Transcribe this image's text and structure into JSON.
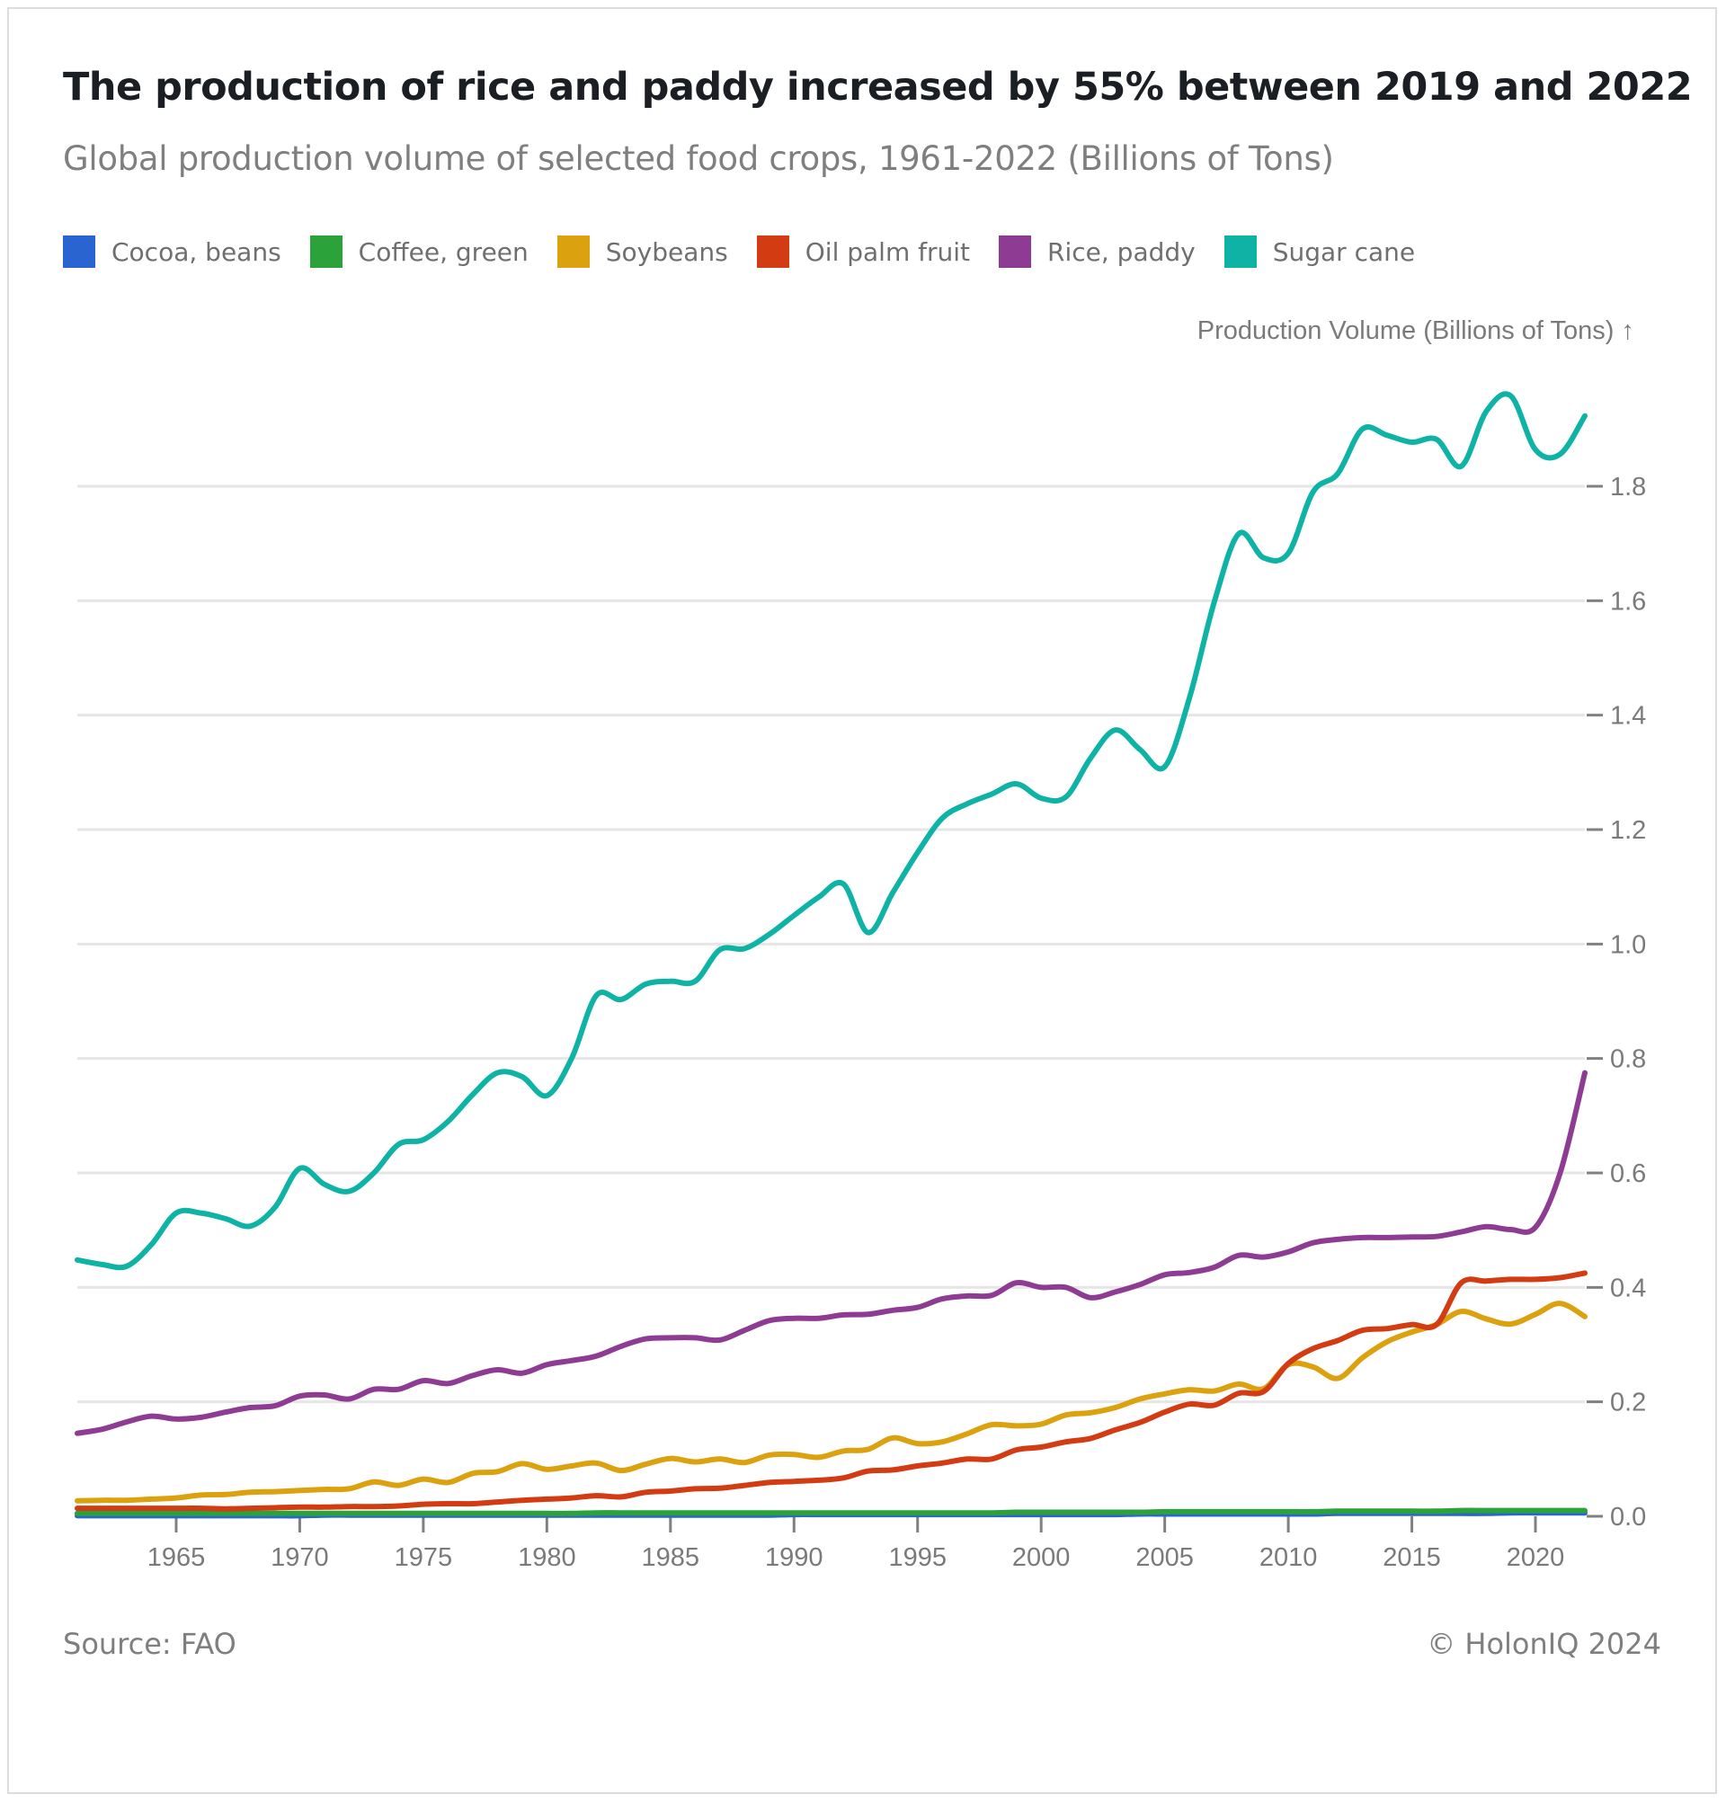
{
  "header": {
    "title": "The production of rice and paddy increased by 55% between 2019 and 2022",
    "subtitle": "Global production volume of selected food crops, 1961-2022 (Billions of Tons)"
  },
  "footer": {
    "source": "Source: FAO",
    "copyright": "© HolonIQ 2024"
  },
  "chart_data": {
    "type": "line",
    "title": "The production of rice and paddy increased by 55% between 2019 and 2022",
    "subtitle": "Global production volume of selected food crops, 1961-2022 (Billions of Tons)",
    "xlabel": "",
    "ylabel": "Production Volume (Billions of Tons) ↑",
    "xlim": [
      1961,
      2022
    ],
    "ylim": [
      0,
      1.96
    ],
    "x_ticks": [
      1965,
      1970,
      1975,
      1980,
      1985,
      1990,
      1995,
      2000,
      2005,
      2010,
      2015,
      2020
    ],
    "y_ticks": [
      0.0,
      0.2,
      0.4,
      0.6,
      0.8,
      1.0,
      1.2,
      1.4,
      1.6,
      1.8
    ],
    "y_tick_labels": [
      "0.0",
      "0.2",
      "0.4",
      "0.6",
      "0.8",
      "1.0",
      "1.2",
      "1.4",
      "1.6",
      "1.8"
    ],
    "grid": "horizontal",
    "legend_position": "top-left",
    "x_start": 1961,
    "series": [
      {
        "name": "Cocoa, beans",
        "color": "#2a64d0",
        "values": [
          0.001,
          0.001,
          0.001,
          0.001,
          0.001,
          0.001,
          0.001,
          0.001,
          0.001,
          0.001,
          0.002,
          0.002,
          0.002,
          0.002,
          0.002,
          0.002,
          0.002,
          0.002,
          0.002,
          0.002,
          0.002,
          0.002,
          0.002,
          0.002,
          0.002,
          0.002,
          0.002,
          0.002,
          0.002,
          0.003,
          0.003,
          0.003,
          0.003,
          0.003,
          0.003,
          0.003,
          0.003,
          0.003,
          0.003,
          0.003,
          0.003,
          0.003,
          0.003,
          0.004,
          0.004,
          0.004,
          0.004,
          0.004,
          0.004,
          0.004,
          0.004,
          0.005,
          0.005,
          0.005,
          0.005,
          0.005,
          0.005,
          0.005,
          0.006,
          0.006,
          0.006,
          0.006
        ]
      },
      {
        "name": "Coffee, green",
        "color": "#2ba33a",
        "values": [
          0.005,
          0.005,
          0.005,
          0.005,
          0.005,
          0.005,
          0.005,
          0.005,
          0.005,
          0.005,
          0.005,
          0.005,
          0.005,
          0.005,
          0.005,
          0.005,
          0.005,
          0.005,
          0.005,
          0.005,
          0.005,
          0.006,
          0.006,
          0.006,
          0.006,
          0.006,
          0.006,
          0.006,
          0.006,
          0.006,
          0.006,
          0.006,
          0.006,
          0.006,
          0.006,
          0.006,
          0.006,
          0.006,
          0.007,
          0.007,
          0.007,
          0.007,
          0.007,
          0.007,
          0.008,
          0.008,
          0.008,
          0.008,
          0.008,
          0.008,
          0.008,
          0.009,
          0.009,
          0.009,
          0.009,
          0.009,
          0.01,
          0.01,
          0.01,
          0.01,
          0.01,
          0.01
        ]
      },
      {
        "name": "Soybeans",
        "color": "#dba10e",
        "values": [
          0.027,
          0.028,
          0.028,
          0.03,
          0.032,
          0.037,
          0.038,
          0.042,
          0.043,
          0.045,
          0.047,
          0.048,
          0.06,
          0.054,
          0.065,
          0.059,
          0.075,
          0.078,
          0.092,
          0.082,
          0.088,
          0.093,
          0.08,
          0.091,
          0.101,
          0.095,
          0.1,
          0.094,
          0.107,
          0.108,
          0.103,
          0.114,
          0.117,
          0.137,
          0.127,
          0.13,
          0.144,
          0.16,
          0.158,
          0.161,
          0.177,
          0.181,
          0.19,
          0.205,
          0.214,
          0.221,
          0.219,
          0.231,
          0.223,
          0.265,
          0.261,
          0.241,
          0.277,
          0.305,
          0.322,
          0.335,
          0.358,
          0.345,
          0.336,
          0.353,
          0.372,
          0.349
        ]
      },
      {
        "name": "Oil palm fruit",
        "color": "#d33b12",
        "values": [
          0.014,
          0.014,
          0.014,
          0.014,
          0.014,
          0.014,
          0.013,
          0.014,
          0.015,
          0.016,
          0.016,
          0.017,
          0.017,
          0.018,
          0.021,
          0.022,
          0.022,
          0.025,
          0.028,
          0.03,
          0.032,
          0.036,
          0.034,
          0.042,
          0.044,
          0.048,
          0.049,
          0.054,
          0.059,
          0.061,
          0.063,
          0.067,
          0.079,
          0.081,
          0.088,
          0.093,
          0.1,
          0.1,
          0.116,
          0.121,
          0.13,
          0.136,
          0.151,
          0.164,
          0.182,
          0.196,
          0.194,
          0.215,
          0.218,
          0.267,
          0.293,
          0.307,
          0.325,
          0.328,
          0.335,
          0.335,
          0.408,
          0.411,
          0.414,
          0.414,
          0.417,
          0.425
        ]
      },
      {
        "name": "Rice, paddy",
        "color": "#8e3c93",
        "values": [
          0.145,
          0.152,
          0.165,
          0.175,
          0.17,
          0.173,
          0.182,
          0.19,
          0.193,
          0.21,
          0.212,
          0.205,
          0.222,
          0.222,
          0.237,
          0.232,
          0.246,
          0.256,
          0.25,
          0.265,
          0.272,
          0.28,
          0.297,
          0.31,
          0.312,
          0.312,
          0.308,
          0.325,
          0.342,
          0.346,
          0.346,
          0.352,
          0.353,
          0.36,
          0.365,
          0.38,
          0.385,
          0.386,
          0.408,
          0.4,
          0.4,
          0.382,
          0.392,
          0.405,
          0.422,
          0.426,
          0.435,
          0.456,
          0.453,
          0.462,
          0.478,
          0.484,
          0.487,
          0.487,
          0.488,
          0.489,
          0.497,
          0.506,
          0.501,
          0.505,
          0.6,
          0.775
        ]
      },
      {
        "name": "Sugar cane",
        "color": "#0fb3a6",
        "values": [
          0.448,
          0.44,
          0.437,
          0.475,
          0.53,
          0.53,
          0.52,
          0.507,
          0.54,
          0.608,
          0.58,
          0.568,
          0.6,
          0.65,
          0.658,
          0.69,
          0.737,
          0.775,
          0.768,
          0.735,
          0.8,
          0.91,
          0.903,
          0.93,
          0.935,
          0.935,
          0.99,
          0.992,
          1.017,
          1.05,
          1.082,
          1.105,
          1.02,
          1.09,
          1.16,
          1.22,
          1.245,
          1.262,
          1.28,
          1.255,
          1.257,
          1.325,
          1.374,
          1.34,
          1.31,
          1.43,
          1.597,
          1.717,
          1.675,
          1.683,
          1.79,
          1.822,
          1.9,
          1.889,
          1.877,
          1.882,
          1.835,
          1.93,
          1.958,
          1.864,
          1.856,
          1.923
        ]
      }
    ]
  }
}
